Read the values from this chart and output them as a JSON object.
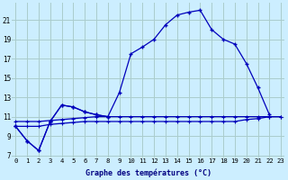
{
  "title": "Graphe des températures (°C)",
  "background_color": "#cceeff",
  "grid_color": "#aacccc",
  "line_color": "#0000bb",
  "x_labels": [
    "0",
    "1",
    "2",
    "3",
    "4",
    "5",
    "6",
    "7",
    "8",
    "9",
    "10",
    "11",
    "12",
    "13",
    "14",
    "15",
    "16",
    "17",
    "18",
    "19",
    "20",
    "21",
    "22",
    "23"
  ],
  "y_ticks": [
    7,
    9,
    11,
    13,
    15,
    17,
    19,
    21
  ],
  "ylim": [
    6.8,
    22.8
  ],
  "xlim": [
    -0.3,
    23.3
  ],
  "series_main": [
    10.0,
    8.5,
    7.5,
    10.5,
    12.2,
    12.0,
    11.5,
    11.2,
    11.0,
    13.5,
    17.5,
    18.2,
    19.0,
    20.5,
    21.5,
    21.8,
    22.0,
    20.0,
    19.0,
    18.5,
    16.5,
    14.0,
    11.2,
    null
  ],
  "series_short": [
    10.0,
    8.5,
    7.5,
    10.5,
    12.2,
    12.0,
    11.5,
    11.2,
    11.0
  ],
  "series_flat1": [
    10.0,
    10.0,
    10.0,
    10.2,
    10.3,
    10.4,
    10.5,
    10.5,
    10.5,
    10.5,
    10.5,
    10.5,
    10.5,
    10.5,
    10.5,
    10.5,
    10.5,
    10.5,
    10.5,
    10.5,
    10.7,
    10.8,
    11.0,
    11.0
  ],
  "series_flat2": [
    10.5,
    10.5,
    10.5,
    10.6,
    10.7,
    10.8,
    10.9,
    11.0,
    11.0,
    11.0,
    11.0,
    11.0,
    11.0,
    11.0,
    11.0,
    11.0,
    11.0,
    11.0,
    11.0,
    11.0,
    11.0,
    11.0,
    11.0,
    11.0
  ]
}
